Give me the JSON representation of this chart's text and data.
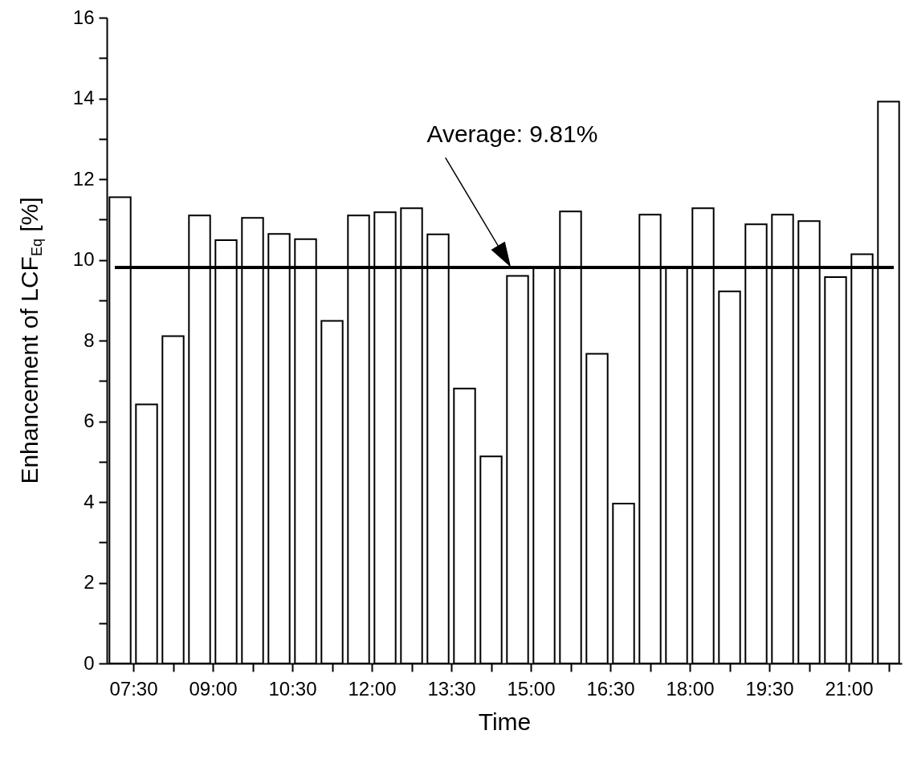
{
  "chart_data": {
    "type": "bar",
    "xlabel": "Time",
    "ylabel": "Enhancement of LCF$_{Eq}$ [%]",
    "x": [
      7.25,
      7.75,
      8.25,
      8.75,
      9.25,
      9.75,
      10.25,
      10.75,
      11.25,
      11.75,
      12.25,
      12.75,
      13.25,
      13.75,
      14.25,
      14.75,
      15.25,
      15.75,
      16.25,
      16.75,
      17.25,
      17.75,
      18.25,
      18.75,
      19.25,
      19.75,
      20.25,
      20.75,
      21.25,
      21.75
    ],
    "values": [
      11.55,
      6.42,
      8.11,
      11.1,
      10.49,
      11.04,
      10.64,
      10.51,
      8.49,
      11.1,
      11.18,
      11.28,
      10.63,
      6.81,
      5.13,
      9.6,
      9.8,
      11.2,
      7.67,
      3.96,
      11.12,
      9.8,
      11.28,
      9.22,
      10.88,
      11.12,
      10.96,
      9.57,
      10.14,
      13.92
    ],
    "color": "#ffffff",
    "xlim": [
      7.0,
      22.0
    ],
    "xticks": [
      {
        "value": 7.5,
        "label": "07:30"
      },
      {
        "value": 8.25,
        "label": null
      },
      {
        "value": 9.0,
        "label": "09:00"
      },
      {
        "value": 9.75,
        "label": null
      },
      {
        "value": 10.5,
        "label": "10:30"
      },
      {
        "value": 11.25,
        "label": null
      },
      {
        "value": 12.0,
        "label": "12:00"
      },
      {
        "value": 12.75,
        "label": null
      },
      {
        "value": 13.5,
        "label": "13:30"
      },
      {
        "value": 14.25,
        "label": null
      },
      {
        "value": 15.0,
        "label": "15:00"
      },
      {
        "value": 15.75,
        "label": null
      },
      {
        "value": 16.5,
        "label": "16:30"
      },
      {
        "value": 17.25,
        "label": null
      },
      {
        "value": 18.0,
        "label": "18:00"
      },
      {
        "value": 18.75,
        "label": null
      },
      {
        "value": 19.5,
        "label": "19:30"
      },
      {
        "value": 20.25,
        "label": null
      },
      {
        "value": 21.0,
        "label": "21:00"
      },
      {
        "value": 21.75,
        "label": null
      }
    ],
    "ylim": [
      0,
      16
    ],
    "yticks": [
      0,
      {
        "value": 1,
        "label": null
      },
      2,
      {
        "value": 3,
        "label": null
      },
      4,
      {
        "value": 5,
        "label": null
      },
      6,
      {
        "value": 7,
        "label": null
      },
      8,
      {
        "value": 9,
        "label": null
      },
      10,
      {
        "value": 11,
        "label": null
      },
      12,
      {
        "value": 13,
        "label": null
      },
      14,
      {
        "value": 15,
        "label": null
      },
      16
    ],
    "ref_lines": [
      {
        "axis": "y",
        "value": 9.81,
        "label": "Average: 9.81%"
      }
    ],
    "grid": false,
    "legend": false
  }
}
